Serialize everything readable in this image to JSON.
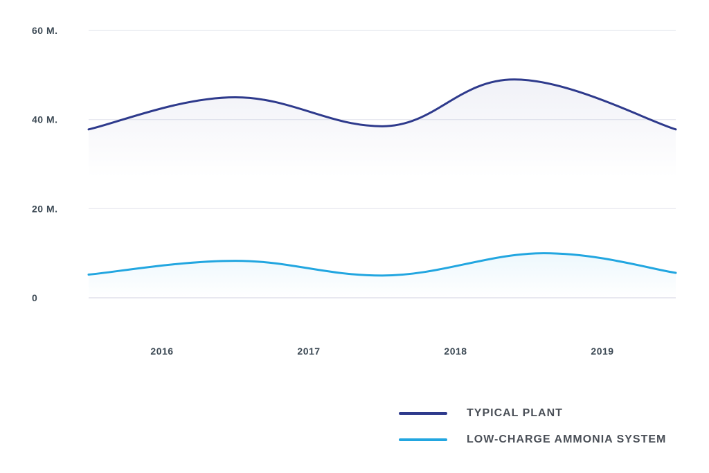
{
  "chart_data": {
    "type": "area",
    "title": "",
    "xlabel": "",
    "ylabel": "",
    "categories": [
      "2016",
      "2017",
      "2018",
      "2019"
    ],
    "x": [
      2015.5,
      2016.5,
      2017.5,
      2018.4,
      2019.5
    ],
    "ylim": [
      0,
      60
    ],
    "yticks": [
      0,
      20,
      40,
      60
    ],
    "ytick_labels": [
      "0",
      "20 M.",
      "40 M.",
      "60 M."
    ],
    "grid": "horizontal",
    "legend_position": "bottom-right",
    "series": [
      {
        "name": "TYPICAL PLANT",
        "color": "#2e3a8c",
        "x": [
          2015.5,
          2016.5,
          2017.5,
          2018.4,
          2019.5
        ],
        "values": [
          37.8,
          45.0,
          38.5,
          49.0,
          37.8
        ]
      },
      {
        "name": "LOW-CHARGE AMMONIA SYSTEM",
        "color": "#22a6e0",
        "x": [
          2015.5,
          2016.5,
          2017.5,
          2018.6,
          2019.5
        ],
        "values": [
          5.2,
          8.3,
          5.0,
          10.0,
          5.6
        ]
      }
    ]
  },
  "colors": {
    "grid": "#e4e6ee",
    "baseline_axis": "#d9dbe6",
    "tick_text": "#3d4a55"
  }
}
